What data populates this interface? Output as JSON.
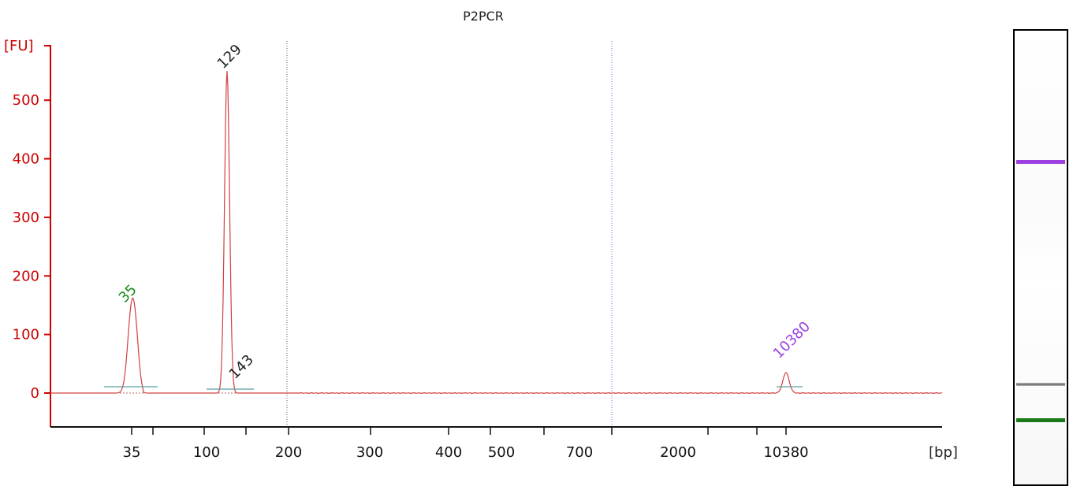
{
  "chart_data": {
    "type": "line",
    "title": "P2PCR",
    "ylabel": "[FU]",
    "xlabel": "[bp]",
    "ylim": [
      -55,
      590
    ],
    "y_ticks": [
      "0",
      "100",
      "200",
      "300",
      "400",
      "500"
    ],
    "x_tick_labels": [
      "35",
      "100",
      "200",
      "300",
      "400",
      "500",
      "700",
      "2000",
      "10380"
    ],
    "grid": "off",
    "series": [
      {
        "values_note": "",
        "x": [
          "35",
          "129",
          "143",
          "10380"
        ],
        "values": [
          142,
          550,
          10,
          35
        ]
      }
    ],
    "peaks": [
      {
        "label": "35",
        "size_bp": 35,
        "fu": 142,
        "color": "#1a8a1a"
      },
      {
        "label": "129",
        "size_bp": 129,
        "fu": 550,
        "color": "#222222"
      },
      {
        "label": "143",
        "size_bp": 143,
        "fu": 10,
        "color": "#222222"
      },
      {
        "label": "10380",
        "size_bp": 10380,
        "fu": 35,
        "color": "#9b3fe0"
      }
    ],
    "colors": {
      "trace": "#d04040",
      "axis": "#cc0000",
      "lower_marker": "#1a8a1a",
      "upper_marker": "#9b3fe0",
      "baseline": "#5aa0a0"
    }
  },
  "gel": {
    "bands": [
      "upper-marker",
      "sample",
      "lower-marker"
    ]
  }
}
